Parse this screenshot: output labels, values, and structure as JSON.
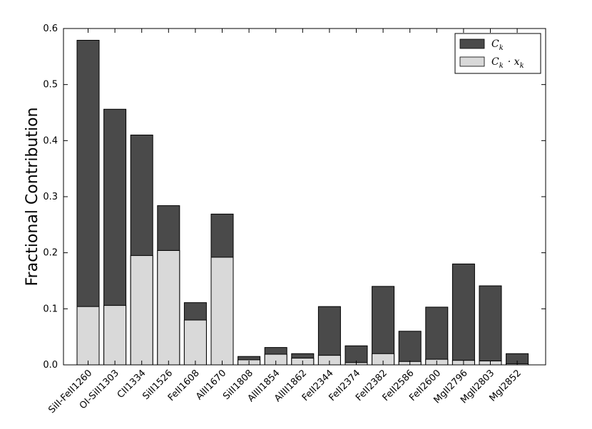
{
  "chart_data": {
    "type": "bar",
    "stacking": "overlay",
    "categories": [
      "SiII-FeII1260",
      "OI-SiII1303",
      "CII1334",
      "SiII1526",
      "FeII1608",
      "AlII1670",
      "SiII1808",
      "AlIII1854",
      "AlIII1862",
      "FeII2344",
      "FeII2374",
      "FeII2382",
      "FeII2586",
      "FeII2600",
      "MgII2796",
      "MgII2803",
      "MgI2852"
    ],
    "series": [
      {
        "name": "C_k",
        "label_main": "C",
        "label_sub": "k",
        "color": "#4a4a4a",
        "values": [
          0.579,
          0.456,
          0.41,
          0.284,
          0.111,
          0.269,
          0.015,
          0.031,
          0.02,
          0.104,
          0.034,
          0.14,
          0.06,
          0.103,
          0.18,
          0.141,
          0.02
        ]
      },
      {
        "name": "C_k · x_k",
        "label_main": "C",
        "label_sub": "k",
        "label_mid": "· x",
        "label_sub2": "k",
        "color": "#d9d9d9",
        "values": [
          0.104,
          0.106,
          0.195,
          0.204,
          0.08,
          0.192,
          0.009,
          0.019,
          0.012,
          0.017,
          0.004,
          0.02,
          0.006,
          0.01,
          0.008,
          0.007,
          0.002
        ]
      }
    ],
    "ylabel": "Fractional Contribution",
    "xlabel": "",
    "ylim": [
      0,
      0.6
    ],
    "yticks": [
      "0.0",
      "0.1",
      "0.2",
      "0.3",
      "0.4",
      "0.5",
      "0.6"
    ],
    "grid": false,
    "legend_position": "top-right"
  }
}
